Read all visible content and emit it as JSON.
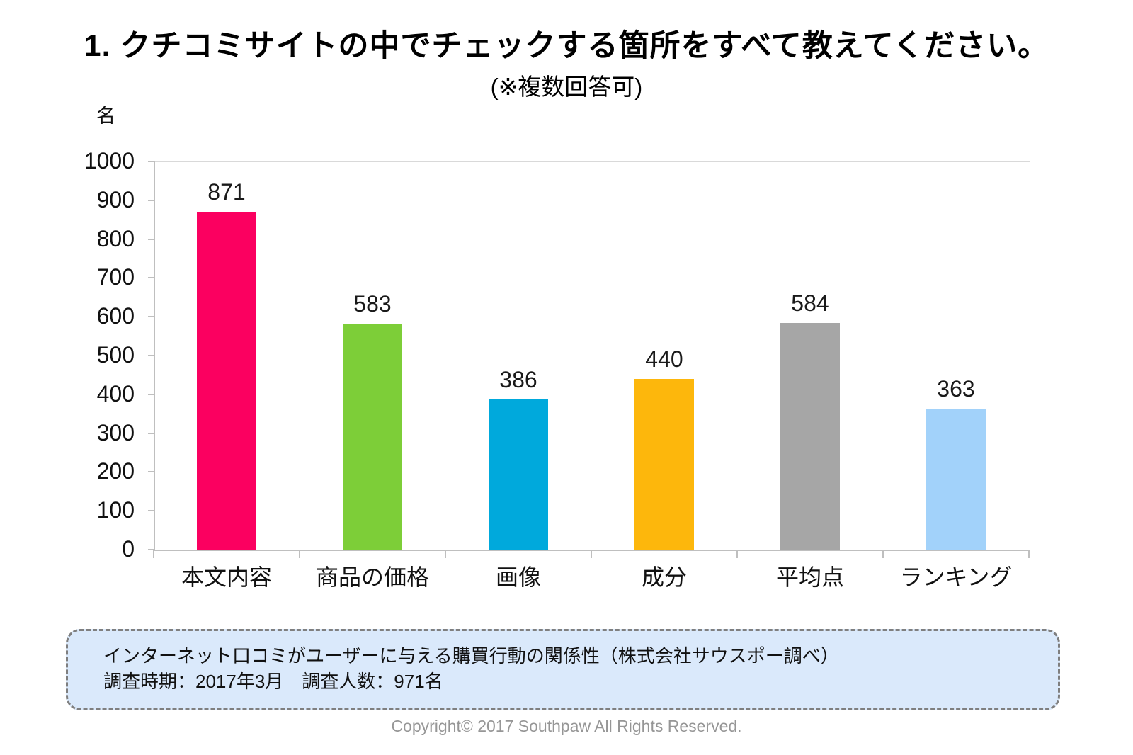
{
  "title": "1. クチコミサイトの中でチェックする箇所をすべて教えてください。",
  "subtitle": "(※複数回答可)",
  "chart_data": {
    "type": "bar",
    "title": "クチコミサイトの中でチェックする箇所",
    "unit_label": "名",
    "categories": [
      "本文内容",
      "商品の価格",
      "画像",
      "成分",
      "平均点",
      "ランキング"
    ],
    "values": [
      871,
      583,
      386,
      440,
      584,
      363
    ],
    "bar_colors": [
      "#FB0060",
      "#7DCE38",
      "#00A9DC",
      "#FDB70C",
      "#A6A6A6",
      "#A2D2FA"
    ],
    "ylim": [
      0,
      1000
    ],
    "ystep": 100,
    "grid": true,
    "legend": "none",
    "xlabel": "",
    "ylabel": "名"
  },
  "source_box": {
    "line1": "インターネット口コミがユーザーに与える購買行動の関係性（株式会社サウスポー調べ）",
    "line2": "調査時期：2017年3月　調査人数：971名"
  },
  "footer": {
    "copyright": "Copyright© 2017 Southpaw All Rights Reserved."
  },
  "colors": {
    "gridline": "#D9D9D9",
    "axis": "#BFBFBF",
    "source_box_bg": "#DAE9FB",
    "source_box_border": "#7F7F7F",
    "copyright_text": "#969696"
  }
}
